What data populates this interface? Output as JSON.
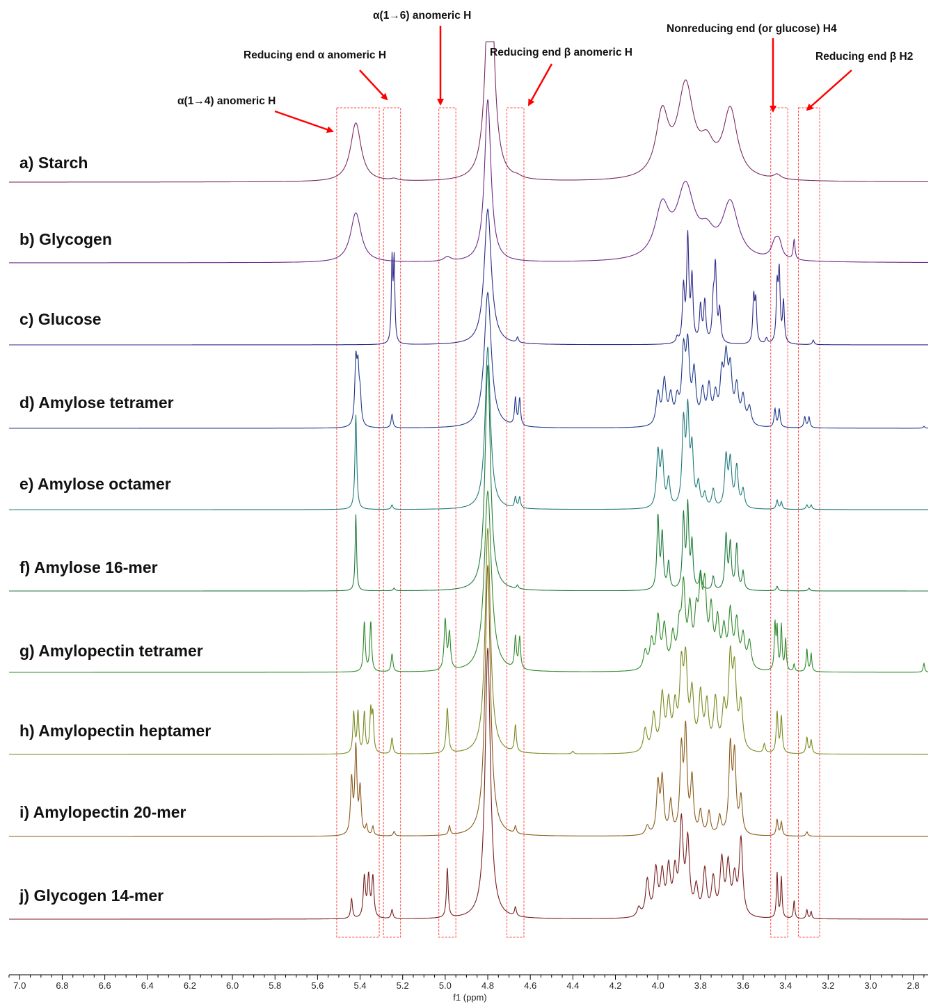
{
  "chart_data": {
    "type": "line",
    "xlabel": "f1 (ppm)",
    "xlim": [
      7.05,
      2.73
    ],
    "x_reversed": true,
    "x_ticks": [
      "7.0",
      "6.8",
      "6.6",
      "6.4",
      "6.2",
      "6.0",
      "5.8",
      "5.6",
      "5.4",
      "5.2",
      "5.0",
      "4.8",
      "4.6",
      "4.4",
      "4.2",
      "4.0",
      "3.8",
      "3.6",
      "3.4",
      "3.2",
      "3.0",
      "2.8"
    ],
    "grid": false,
    "annotations": [
      {
        "text": "α(1→4) anomeric H",
        "x": 5.42
      },
      {
        "text": "Reducing end α anomeric H",
        "x": 5.24
      },
      {
        "text": "α(1→6) anomeric H",
        "x": 4.99
      },
      {
        "text": "Reducing end β anomeric H",
        "x": 4.66
      },
      {
        "text": "Nonreducing end (or glucose) H4",
        "x": 3.43
      },
      {
        "text": "Reducing end β H2",
        "x": 3.29
      }
    ],
    "highlight_regions": [
      [
        5.51,
        5.31
      ],
      [
        5.29,
        5.21
      ],
      [
        5.03,
        4.95
      ],
      [
        4.71,
        4.63
      ],
      [
        3.47,
        3.39
      ],
      [
        3.34,
        3.24
      ]
    ],
    "series": [
      {
        "name": "a) Starch",
        "color": "#7b2a5e",
        "peaks": [
          [
            5.42,
            0.65,
            0.03
          ],
          [
            5.24,
            0.02,
            0.02
          ],
          [
            4.79,
            3.0,
            0.02
          ],
          [
            4.66,
            0.02,
            0.02
          ],
          [
            3.98,
            0.68,
            0.035
          ],
          [
            3.87,
            1.0,
            0.045
          ],
          [
            3.77,
            0.3,
            0.04
          ],
          [
            3.66,
            0.75,
            0.04
          ],
          [
            3.44,
            0.05,
            0.02
          ]
        ]
      },
      {
        "name": "b) Glycogen",
        "color": "#6b2a86",
        "peaks": [
          [
            5.42,
            0.55,
            0.03
          ],
          [
            4.99,
            0.05,
            0.02
          ],
          [
            4.8,
            1.8,
            0.018
          ],
          [
            3.98,
            0.55,
            0.04
          ],
          [
            3.87,
            0.78,
            0.05
          ],
          [
            3.77,
            0.22,
            0.04
          ],
          [
            3.66,
            0.62,
            0.045
          ],
          [
            3.45,
            0.18,
            0.02
          ],
          [
            3.43,
            0.15,
            0.015
          ],
          [
            3.36,
            0.22,
            0.005
          ]
        ]
      },
      {
        "name": "c) Glucose",
        "color": "#2c2a8a",
        "peaks": [
          [
            5.25,
            0.9,
            0.004
          ],
          [
            5.24,
            0.9,
            0.004
          ],
          [
            4.8,
            1.5,
            0.02
          ],
          [
            4.66,
            0.06,
            0.005
          ],
          [
            3.91,
            0.06,
            0.006
          ],
          [
            3.88,
            0.6,
            0.006
          ],
          [
            3.86,
            1.15,
            0.006
          ],
          [
            3.84,
            0.7,
            0.006
          ],
          [
            3.8,
            0.4,
            0.006
          ],
          [
            3.78,
            0.45,
            0.006
          ],
          [
            3.74,
            0.4,
            0.006
          ],
          [
            3.73,
            0.8,
            0.006
          ],
          [
            3.71,
            0.35,
            0.006
          ],
          [
            3.55,
            0.5,
            0.005
          ],
          [
            3.54,
            0.45,
            0.005
          ],
          [
            3.49,
            0.06,
            0.006
          ],
          [
            3.44,
            0.6,
            0.005
          ],
          [
            3.43,
            0.75,
            0.005
          ],
          [
            3.41,
            0.45,
            0.005
          ],
          [
            3.27,
            0.05,
            0.005
          ]
        ]
      },
      {
        "name": "d) Amylose tetramer",
        "color": "#1f3a8a",
        "peaks": [
          [
            5.42,
            0.68,
            0.006
          ],
          [
            5.41,
            0.55,
            0.006
          ],
          [
            5.4,
            0.3,
            0.006
          ],
          [
            5.25,
            0.15,
            0.005
          ],
          [
            4.8,
            1.5,
            0.02
          ],
          [
            4.67,
            0.3,
            0.005
          ],
          [
            4.65,
            0.3,
            0.005
          ],
          [
            4.0,
            0.35,
            0.01
          ],
          [
            3.97,
            0.48,
            0.01
          ],
          [
            3.94,
            0.3,
            0.01
          ],
          [
            3.91,
            0.25,
            0.01
          ],
          [
            3.88,
            0.75,
            0.01
          ],
          [
            3.86,
            0.8,
            0.01
          ],
          [
            3.83,
            0.55,
            0.01
          ],
          [
            3.79,
            0.35,
            0.01
          ],
          [
            3.76,
            0.4,
            0.01
          ],
          [
            3.73,
            0.3,
            0.01
          ],
          [
            3.7,
            0.5,
            0.01
          ],
          [
            3.68,
            0.65,
            0.01
          ],
          [
            3.66,
            0.55,
            0.01
          ],
          [
            3.63,
            0.4,
            0.01
          ],
          [
            3.6,
            0.3,
            0.01
          ],
          [
            3.57,
            0.2,
            0.01
          ],
          [
            3.45,
            0.2,
            0.005
          ],
          [
            3.43,
            0.2,
            0.005
          ],
          [
            3.31,
            0.12,
            0.005
          ],
          [
            3.29,
            0.12,
            0.005
          ],
          [
            2.75,
            0.02,
            0.005
          ]
        ]
      },
      {
        "name": "e) Amylose octamer",
        "color": "#1f7a7a",
        "peaks": [
          [
            5.42,
            1.05,
            0.005
          ],
          [
            5.25,
            0.05,
            0.005
          ],
          [
            4.8,
            1.8,
            0.015
          ],
          [
            4.67,
            0.12,
            0.005
          ],
          [
            4.65,
            0.12,
            0.005
          ],
          [
            4.0,
            0.6,
            0.008
          ],
          [
            3.98,
            0.55,
            0.008
          ],
          [
            3.95,
            0.3,
            0.008
          ],
          [
            3.88,
            0.9,
            0.008
          ],
          [
            3.86,
            1.0,
            0.008
          ],
          [
            3.84,
            0.6,
            0.008
          ],
          [
            3.81,
            0.25,
            0.008
          ],
          [
            3.78,
            0.15,
            0.008
          ],
          [
            3.74,
            0.2,
            0.008
          ],
          [
            3.68,
            0.55,
            0.008
          ],
          [
            3.66,
            0.5,
            0.008
          ],
          [
            3.63,
            0.45,
            0.008
          ],
          [
            3.6,
            0.2,
            0.008
          ],
          [
            3.44,
            0.1,
            0.005
          ],
          [
            3.42,
            0.08,
            0.005
          ],
          [
            3.3,
            0.05,
            0.005
          ],
          [
            3.28,
            0.05,
            0.005
          ]
        ]
      },
      {
        "name": "f) Amylose 16-mer",
        "color": "#1e7a3a",
        "peaks": [
          [
            5.42,
            0.85,
            0.004
          ],
          [
            5.24,
            0.03,
            0.005
          ],
          [
            4.8,
            2.5,
            0.015
          ],
          [
            4.66,
            0.04,
            0.005
          ],
          [
            4.0,
            0.8,
            0.006
          ],
          [
            3.98,
            0.6,
            0.006
          ],
          [
            3.95,
            0.3,
            0.006
          ],
          [
            3.88,
            0.8,
            0.006
          ],
          [
            3.86,
            0.9,
            0.006
          ],
          [
            3.84,
            0.5,
            0.006
          ],
          [
            3.8,
            0.2,
            0.006
          ],
          [
            3.74,
            0.15,
            0.006
          ],
          [
            3.68,
            0.6,
            0.006
          ],
          [
            3.66,
            0.5,
            0.006
          ],
          [
            3.63,
            0.5,
            0.006
          ],
          [
            3.6,
            0.2,
            0.006
          ],
          [
            3.44,
            0.05,
            0.005
          ],
          [
            3.29,
            0.03,
            0.005
          ]
        ]
      },
      {
        "name": "g) Amylopectin tetramer",
        "color": "#2e8a2a",
        "peaks": [
          [
            5.38,
            0.55,
            0.005
          ],
          [
            5.35,
            0.55,
            0.005
          ],
          [
            5.25,
            0.2,
            0.005
          ],
          [
            5.0,
            0.55,
            0.006
          ],
          [
            4.98,
            0.4,
            0.006
          ],
          [
            4.8,
            2.0,
            0.02
          ],
          [
            4.67,
            0.35,
            0.005
          ],
          [
            4.65,
            0.35,
            0.005
          ],
          [
            4.06,
            0.2,
            0.01
          ],
          [
            4.03,
            0.3,
            0.01
          ],
          [
            4.0,
            0.55,
            0.01
          ],
          [
            3.97,
            0.45,
            0.01
          ],
          [
            3.93,
            0.35,
            0.01
          ],
          [
            3.9,
            0.4,
            0.01
          ],
          [
            3.88,
            0.85,
            0.01
          ],
          [
            3.85,
            0.6,
            0.01
          ],
          [
            3.82,
            0.5,
            0.01
          ],
          [
            3.8,
            0.75,
            0.01
          ],
          [
            3.78,
            0.8,
            0.01
          ],
          [
            3.75,
            0.6,
            0.01
          ],
          [
            3.72,
            0.5,
            0.01
          ],
          [
            3.69,
            0.4,
            0.01
          ],
          [
            3.66,
            0.6,
            0.01
          ],
          [
            3.63,
            0.5,
            0.01
          ],
          [
            3.6,
            0.35,
            0.01
          ],
          [
            3.57,
            0.3,
            0.01
          ],
          [
            3.45,
            0.5,
            0.004
          ],
          [
            3.44,
            0.45,
            0.004
          ],
          [
            3.42,
            0.5,
            0.004
          ],
          [
            3.4,
            0.35,
            0.004
          ],
          [
            3.36,
            0.08,
            0.004
          ],
          [
            3.3,
            0.25,
            0.004
          ],
          [
            3.28,
            0.2,
            0.004
          ],
          [
            2.75,
            0.1,
            0.004
          ]
        ]
      },
      {
        "name": "h) Amylopectin heptamer",
        "color": "#7a8a1e",
        "peaks": [
          [
            5.43,
            0.45,
            0.005
          ],
          [
            5.41,
            0.45,
            0.005
          ],
          [
            5.38,
            0.45,
            0.005
          ],
          [
            5.35,
            0.45,
            0.005
          ],
          [
            5.34,
            0.4,
            0.005
          ],
          [
            5.25,
            0.18,
            0.005
          ],
          [
            4.99,
            0.5,
            0.006
          ],
          [
            4.8,
            2.5,
            0.015
          ],
          [
            4.67,
            0.3,
            0.005
          ],
          [
            4.4,
            0.03,
            0.005
          ],
          [
            4.06,
            0.25,
            0.01
          ],
          [
            4.02,
            0.4,
            0.01
          ],
          [
            3.98,
            0.6,
            0.01
          ],
          [
            3.95,
            0.5,
            0.01
          ],
          [
            3.92,
            0.45,
            0.01
          ],
          [
            3.89,
            0.85,
            0.01
          ],
          [
            3.87,
            0.9,
            0.01
          ],
          [
            3.84,
            0.6,
            0.01
          ],
          [
            3.8,
            0.6,
            0.01
          ],
          [
            3.77,
            0.5,
            0.01
          ],
          [
            3.73,
            0.55,
            0.01
          ],
          [
            3.69,
            0.45,
            0.01
          ],
          [
            3.66,
            0.95,
            0.01
          ],
          [
            3.64,
            0.8,
            0.01
          ],
          [
            3.61,
            0.5,
            0.01
          ],
          [
            3.5,
            0.1,
            0.005
          ],
          [
            3.44,
            0.45,
            0.005
          ],
          [
            3.42,
            0.4,
            0.005
          ],
          [
            3.3,
            0.18,
            0.005
          ],
          [
            3.28,
            0.15,
            0.005
          ]
        ]
      },
      {
        "name": "i) Amylopectin 20-mer",
        "color": "#8a5a1a",
        "peaks": [
          [
            5.44,
            0.6,
            0.006
          ],
          [
            5.42,
            0.95,
            0.006
          ],
          [
            5.4,
            0.5,
            0.006
          ],
          [
            5.37,
            0.1,
            0.005
          ],
          [
            5.34,
            0.1,
            0.005
          ],
          [
            5.24,
            0.05,
            0.005
          ],
          [
            4.98,
            0.1,
            0.005
          ],
          [
            4.8,
            3.0,
            0.015
          ],
          [
            4.67,
            0.08,
            0.005
          ],
          [
            4.05,
            0.1,
            0.01
          ],
          [
            4.0,
            0.55,
            0.008
          ],
          [
            3.98,
            0.6,
            0.008
          ],
          [
            3.94,
            0.35,
            0.008
          ],
          [
            3.89,
            0.9,
            0.008
          ],
          [
            3.87,
            1.1,
            0.008
          ],
          [
            3.84,
            0.6,
            0.008
          ],
          [
            3.8,
            0.25,
            0.008
          ],
          [
            3.76,
            0.25,
            0.008
          ],
          [
            3.71,
            0.2,
            0.008
          ],
          [
            3.66,
            0.95,
            0.008
          ],
          [
            3.64,
            0.85,
            0.008
          ],
          [
            3.61,
            0.4,
            0.008
          ],
          [
            3.44,
            0.18,
            0.005
          ],
          [
            3.42,
            0.15,
            0.005
          ],
          [
            3.3,
            0.05,
            0.005
          ]
        ]
      },
      {
        "name": "j) Glycogen 14-mer",
        "color": "#7a1e1e",
        "peaks": [
          [
            5.44,
            0.22,
            0.005
          ],
          [
            5.38,
            0.45,
            0.006
          ],
          [
            5.36,
            0.45,
            0.006
          ],
          [
            5.34,
            0.45,
            0.006
          ],
          [
            5.25,
            0.1,
            0.005
          ],
          [
            4.99,
            0.55,
            0.005
          ],
          [
            4.8,
            3.0,
            0.015
          ],
          [
            4.67,
            0.1,
            0.005
          ],
          [
            4.09,
            0.1,
            0.01
          ],
          [
            4.05,
            0.4,
            0.01
          ],
          [
            4.01,
            0.5,
            0.01
          ],
          [
            3.98,
            0.45,
            0.01
          ],
          [
            3.95,
            0.5,
            0.01
          ],
          [
            3.92,
            0.45,
            0.01
          ],
          [
            3.89,
            1.0,
            0.01
          ],
          [
            3.86,
            0.8,
            0.01
          ],
          [
            3.82,
            0.3,
            0.01
          ],
          [
            3.78,
            0.5,
            0.01
          ],
          [
            3.74,
            0.4,
            0.01
          ],
          [
            3.7,
            0.6,
            0.01
          ],
          [
            3.67,
            0.55,
            0.01
          ],
          [
            3.64,
            0.4,
            0.01
          ],
          [
            3.61,
            0.85,
            0.01
          ],
          [
            3.44,
            0.5,
            0.004
          ],
          [
            3.42,
            0.45,
            0.004
          ],
          [
            3.36,
            0.2,
            0.004
          ],
          [
            3.3,
            0.1,
            0.004
          ],
          [
            3.28,
            0.08,
            0.004
          ]
        ]
      }
    ]
  }
}
